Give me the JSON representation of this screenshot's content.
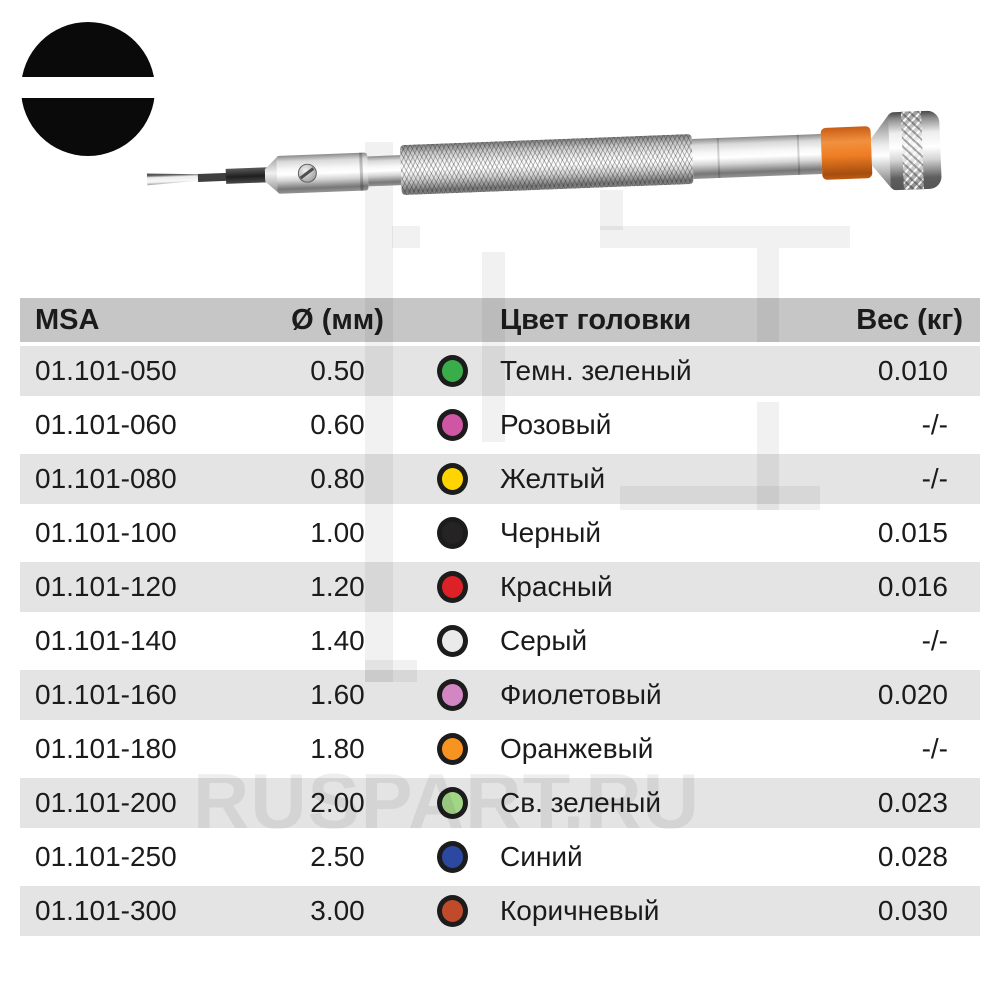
{
  "icon": {
    "type": "slotted-screwdriver-tip-symbol"
  },
  "watermark": {
    "text": "RUSPART.RU"
  },
  "colors": {
    "header_bg": "#c6c6c6",
    "row_alt_bg": "#e4e4e4",
    "row_bg": "#ffffff",
    "text": "#1b1b1b",
    "dot_ring": "#1c1c1c",
    "handle_band": "#ef7d24"
  },
  "table": {
    "headers": [
      "MSA",
      "Ø (мм)",
      "Цвет головки",
      "Вес (кг)"
    ],
    "rows": [
      {
        "msa": "01.101-050",
        "diameter": "0.50",
        "color_hex": "#3aad4b",
        "color_name": "Темн. зеленый",
        "weight": "0.010"
      },
      {
        "msa": "01.101-060",
        "diameter": "0.60",
        "color_hex": "#ce56a2",
        "color_name": "Розовый",
        "weight": "-/-"
      },
      {
        "msa": "01.101-080",
        "diameter": "0.80",
        "color_hex": "#ffd400",
        "color_name": "Желтый",
        "weight": "-/-"
      },
      {
        "msa": "01.101-100",
        "diameter": "1.00",
        "color_hex": "#262324",
        "color_name": "Черный",
        "weight": "0.015"
      },
      {
        "msa": "01.101-120",
        "diameter": "1.20",
        "color_hex": "#dc2127",
        "color_name": "Красный",
        "weight": "0.016"
      },
      {
        "msa": "01.101-140",
        "diameter": "1.40",
        "color_hex": "#eaeaea",
        "color_name": "Серый",
        "weight": "-/-"
      },
      {
        "msa": "01.101-160",
        "diameter": "1.60",
        "color_hex": "#d287c3",
        "color_name": "Фиолетовый",
        "weight": "0.020"
      },
      {
        "msa": "01.101-180",
        "diameter": "1.80",
        "color_hex": "#f79421",
        "color_name": "Оранжевый",
        "weight": "-/-"
      },
      {
        "msa": "01.101-200",
        "diameter": "2.00",
        "color_hex": "#a2d687",
        "color_name": "Св. зеленый",
        "weight": "0.023"
      },
      {
        "msa": "01.101-250",
        "diameter": "2.50",
        "color_hex": "#2c49a2",
        "color_name": "Синий",
        "weight": "0.028"
      },
      {
        "msa": "01.101-300",
        "diameter": "3.00",
        "color_hex": "#bf4b2a",
        "color_name": "Коричневый",
        "weight": "0.030"
      }
    ]
  }
}
